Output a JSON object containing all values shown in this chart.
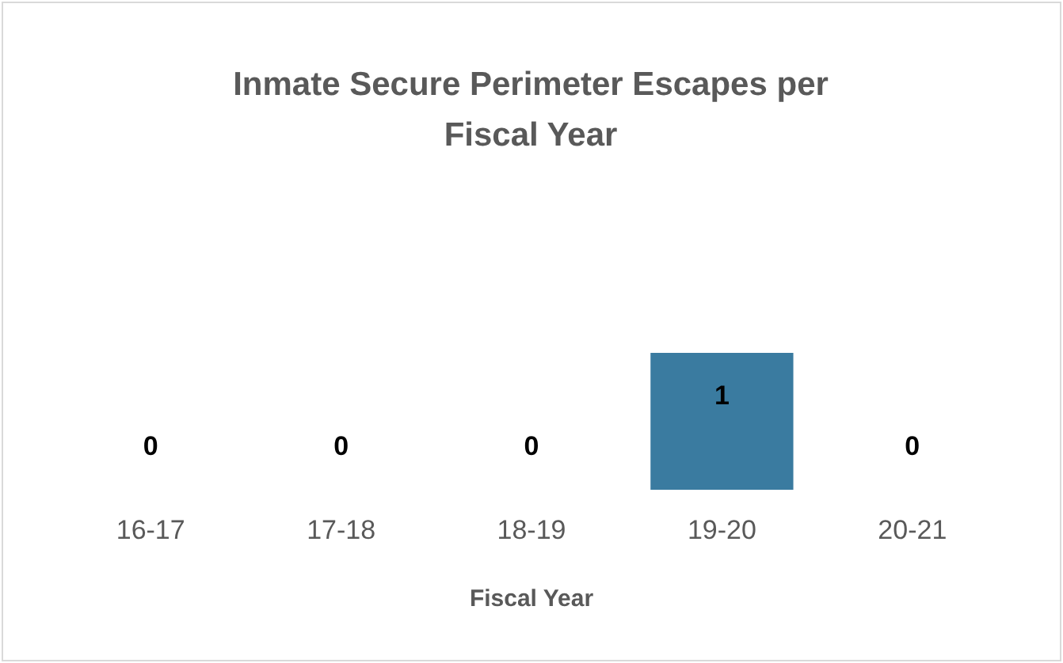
{
  "chart_data": {
    "type": "bar",
    "title": "Inmate Secure Perimeter Escapes per Fiscal Year",
    "xlabel": "Fiscal Year",
    "categories": [
      "16-17",
      "17-18",
      "18-19",
      "19-20",
      "20-21"
    ],
    "values": [
      0,
      0,
      0,
      1,
      0
    ],
    "color": "#3a7ba0",
    "data_labels": true,
    "grid": false,
    "legend": false
  }
}
